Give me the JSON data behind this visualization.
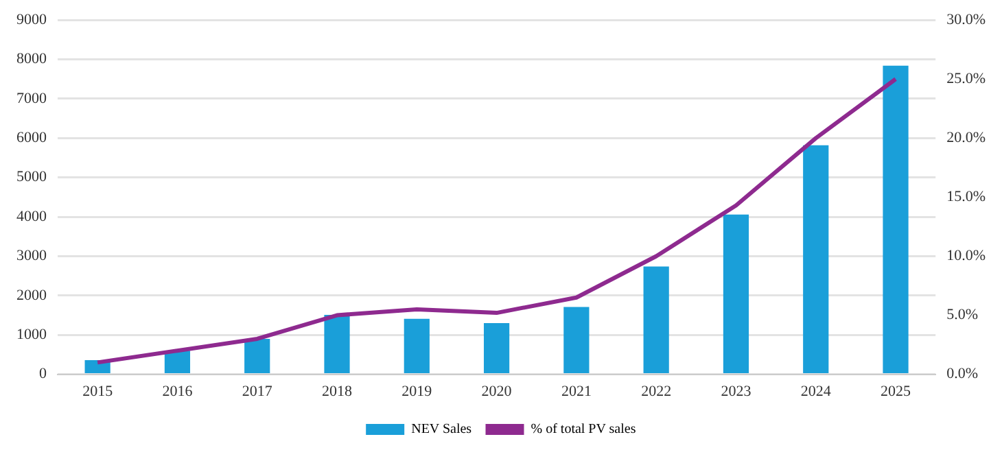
{
  "chart_data": {
    "type": "bar",
    "categories": [
      "2015",
      "2016",
      "2017",
      "2018",
      "2019",
      "2020",
      "2021",
      "2022",
      "2023",
      "2024",
      "2025"
    ],
    "series": [
      {
        "name": "NEV Sales",
        "color": "#1a9fd9",
        "values": [
          360,
          600,
          900,
          1510,
          1410,
          1300,
          1710,
          2740,
          4060,
          5820,
          7840
        ]
      },
      {
        "name": "% of total PV sales",
        "type": "line",
        "axis": "y2",
        "color": "#8e2a8f",
        "values": [
          1.0,
          2.0,
          3.0,
          5.0,
          5.5,
          5.2,
          6.5,
          10.0,
          14.3,
          20.0,
          25.0
        ]
      }
    ],
    "ylim": [
      0,
      9000
    ],
    "yticks": [
      0,
      1000,
      2000,
      3000,
      4000,
      5000,
      6000,
      7000,
      8000,
      9000
    ],
    "y2lim": [
      0,
      30
    ],
    "y2ticks": [
      {
        "value": 0,
        "label": "0.0%"
      },
      {
        "value": 5,
        "label": "5.0%"
      },
      {
        "value": 10,
        "label": "10.0%"
      },
      {
        "value": 15,
        "label": "15.0%"
      },
      {
        "value": 20,
        "label": "20.0%"
      },
      {
        "value": 25,
        "label": "25.0%"
      },
      {
        "value": 30,
        "label": "30.0%"
      }
    ],
    "grid": "y",
    "legend": "bottom",
    "marker": "none",
    "line_style": "solid"
  }
}
